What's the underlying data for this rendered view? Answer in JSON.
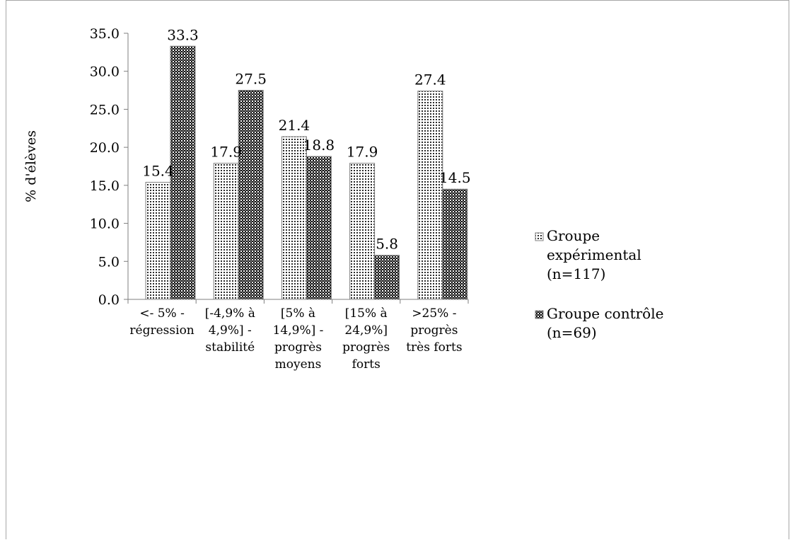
{
  "chart_data": {
    "type": "bar",
    "title": "",
    "ylabel": "% d'élèves",
    "xlabel": "",
    "ylim": [
      0,
      35
    ],
    "yticks": [
      "0.0",
      "5.0",
      "10.0",
      "15.0",
      "20.0",
      "25.0",
      "30.0",
      "35.0"
    ],
    "categories": [
      [
        "<- 5% -",
        "régression"
      ],
      [
        "[-4,9% à",
        "4,9%] -",
        "stabilité"
      ],
      [
        "[5% à",
        "14,9%] -",
        "progrès",
        "moyens"
      ],
      [
        "[15% à",
        "24,9%]",
        "progrès",
        "forts"
      ],
      [
        ">25% -",
        "progrès",
        "très forts"
      ]
    ],
    "series": [
      {
        "name": [
          "Groupe",
          "expérimental",
          "(n=117)"
        ],
        "pattern": "dots",
        "values": [
          15.4,
          17.9,
          21.4,
          17.9,
          27.4
        ],
        "labels": [
          "15.4",
          "17.9",
          "21.4",
          "17.9",
          "27.4"
        ]
      },
      {
        "name": [
          "Groupe contrôle",
          "(n=69)"
        ],
        "pattern": "checker",
        "values": [
          33.3,
          27.5,
          18.8,
          5.8,
          14.5
        ],
        "labels": [
          "33.3",
          "27.5",
          "18.8",
          "5.8",
          "14.5"
        ]
      }
    ],
    "legend_position": "right",
    "grid": false,
    "colors": {
      "axis": "#7f7f7f",
      "bar_outline": "#7f7f7f",
      "frame": "#a6a6a6"
    }
  }
}
